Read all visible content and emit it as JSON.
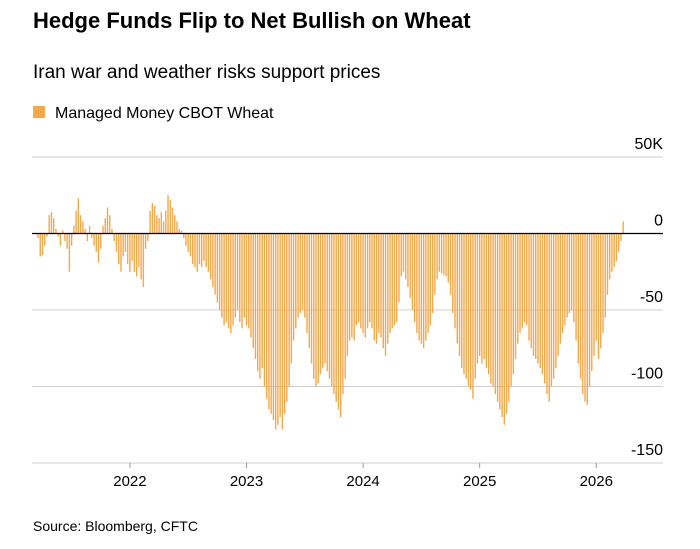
{
  "chart_data": {
    "type": "bar",
    "title": "Hedge Funds Flip to Net Bullish on Wheat",
    "subtitle": "Iran war and weather risks support prices",
    "source": "Source: Bloomberg, CFTC",
    "categories": [
      null,
      null,
      null,
      null,
      null,
      null,
      null,
      null,
      null,
      null,
      null,
      null,
      null,
      null,
      null,
      null,
      null,
      null,
      null,
      null,
      null,
      null,
      null,
      null,
      null,
      null,
      null,
      null,
      null,
      null,
      null,
      null,
      null,
      null,
      null,
      null,
      null,
      null,
      null,
      null,
      null,
      "2022",
      null,
      null,
      null,
      null,
      null,
      null,
      null,
      null,
      null,
      null,
      null,
      null,
      null,
      null,
      null,
      null,
      null,
      null,
      null,
      null,
      null,
      null,
      null,
      null,
      null,
      null,
      null,
      null,
      null,
      null,
      null,
      null,
      null,
      null,
      null,
      null,
      null,
      null,
      null,
      null,
      null,
      null,
      null,
      null,
      null,
      null,
      null,
      null,
      null,
      null,
      null,
      "2023",
      null,
      null,
      null,
      null,
      null,
      null,
      null,
      null,
      null,
      null,
      null,
      null,
      null,
      null,
      null,
      null,
      null,
      null,
      null,
      null,
      null,
      null,
      null,
      null,
      null,
      null,
      null,
      null,
      null,
      null,
      null,
      null,
      null,
      null,
      null,
      null,
      null,
      null,
      null,
      null,
      null,
      null,
      null,
      null,
      null,
      null,
      null,
      null,
      null,
      null,
      null,
      "2024",
      null,
      null,
      null,
      null,
      null,
      null,
      null,
      null,
      null,
      null,
      null,
      null,
      null,
      null,
      null,
      null,
      null,
      null,
      null,
      null,
      null,
      null,
      null,
      null,
      null,
      null,
      null,
      null,
      null,
      null,
      null,
      null,
      null,
      null,
      null,
      null,
      null,
      null,
      null,
      null,
      null,
      null,
      null,
      null,
      null,
      null,
      null,
      null,
      null,
      null,
      null,
      "2025",
      null,
      null,
      null,
      null,
      null,
      null,
      null,
      null,
      null,
      null,
      null,
      null,
      null,
      null,
      null,
      null,
      null,
      null,
      null,
      null,
      null,
      null,
      null,
      null,
      null,
      null,
      null,
      null,
      null,
      null,
      null,
      null,
      null,
      null,
      null,
      null,
      null,
      null,
      null,
      null,
      null,
      null,
      null,
      null,
      null,
      null,
      null,
      null,
      null,
      null,
      null,
      "2026",
      null,
      null,
      null,
      null,
      null,
      null,
      null,
      null,
      null,
      null,
      null,
      null
    ],
    "series": [
      {
        "name": "Managed Money CBOT Wheat",
        "color": "#f2a84b",
        "values": [
          -3,
          -15,
          -14,
          -8,
          -2,
          12,
          14,
          10,
          3,
          -2,
          -8,
          2,
          -5,
          -10,
          -25,
          -8,
          5,
          15,
          23,
          12,
          8,
          3,
          -5,
          5,
          -3,
          -8,
          -12,
          -19,
          -10,
          5,
          10,
          17,
          12,
          3,
          -5,
          -12,
          -20,
          -25,
          -15,
          -12,
          -20,
          -25,
          -18,
          -25,
          -28,
          -22,
          -30,
          -35,
          -10,
          -5,
          15,
          20,
          18,
          12,
          10,
          14,
          8,
          15,
          25,
          22,
          17,
          12,
          8,
          3,
          2,
          -3,
          -8,
          -12,
          -15,
          -20,
          -22,
          -25,
          -20,
          -22,
          -18,
          -22,
          -25,
          -30,
          -35,
          -40,
          -45,
          -50,
          -55,
          -60,
          -58,
          -62,
          -65,
          -60,
          -55,
          -50,
          -58,
          -62,
          -55,
          -60,
          -62,
          -68,
          -75,
          -82,
          -90,
          -95,
          -88,
          -100,
          -108,
          -115,
          -118,
          -122,
          -128,
          -125,
          -120,
          -128,
          -118,
          -110,
          -100,
          -85,
          -70,
          -62,
          -55,
          -52,
          -50,
          -55,
          -65,
          -75,
          -85,
          -95,
          -100,
          -98,
          -92,
          -88,
          -85,
          -90,
          -95,
          -100,
          -105,
          -110,
          -115,
          -120,
          -105,
          -95,
          -80,
          -70,
          -68,
          -70,
          -60,
          -58,
          -62,
          -65,
          -68,
          -62,
          -58,
          -62,
          -70,
          -72,
          -65,
          -68,
          -75,
          -80,
          -72,
          -65,
          -62,
          -60,
          -58,
          -45,
          -28,
          -25,
          -30,
          -35,
          -42,
          -50,
          -58,
          -65,
          -70,
          -72,
          -75,
          -70,
          -65,
          -60,
          -52,
          -40,
          -30,
          -25,
          -26,
          -27,
          -28,
          -32,
          -40,
          -52,
          -62,
          -72,
          -80,
          -88,
          -92,
          -95,
          -100,
          -102,
          -108,
          -95,
          -85,
          -80,
          -85,
          -82,
          -88,
          -92,
          -98,
          -100,
          -105,
          -110,
          -115,
          -120,
          -125,
          -118,
          -110,
          -100,
          -92,
          -82,
          -72,
          -65,
          -62,
          -58,
          -60,
          -70,
          -75,
          -80,
          -82,
          -85,
          -88,
          -92,
          -98,
          -105,
          -110,
          -100,
          -95,
          -88,
          -80,
          -72,
          -65,
          -60,
          -55,
          -52,
          -50,
          -58,
          -70,
          -85,
          -95,
          -105,
          -110,
          -112,
          -100,
          -90,
          -80,
          -70,
          -82,
          -75,
          -65,
          -55,
          -40,
          -30,
          -25,
          -22,
          -18,
          -12,
          -5,
          8
        ]
      }
    ],
    "ylim": [
      -150,
      50
    ],
    "yticks": [
      -150,
      -100,
      -50,
      0,
      {
        "value": 50,
        "label": "50K"
      }
    ],
    "grid": true
  }
}
